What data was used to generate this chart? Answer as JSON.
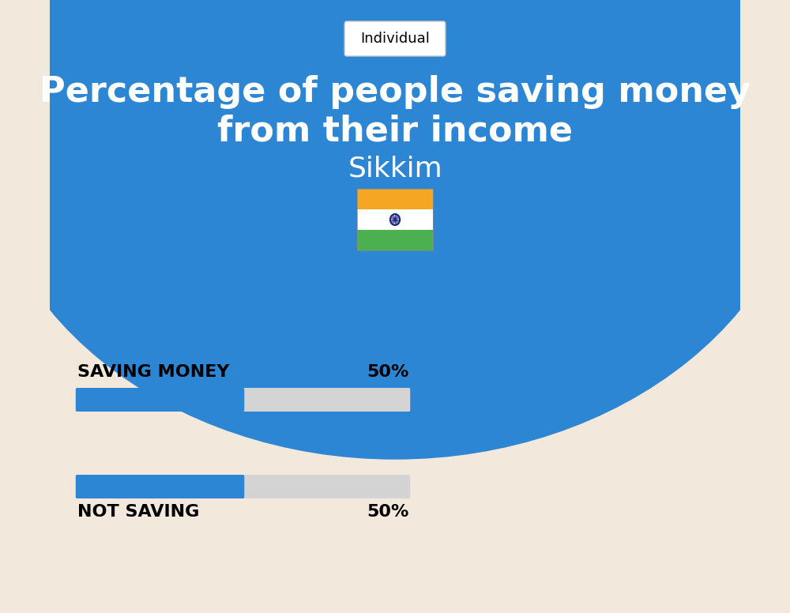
{
  "title_line1": "Percentage of people saving money",
  "title_line2": "from their income",
  "subtitle": "Sikkim",
  "tab_label": "Individual",
  "bg_color": "#f2e8dc",
  "header_color": "#2d86d4",
  "bar_blue": "#2d86d4",
  "bar_gray": "#d4d4d4",
  "categories": [
    "SAVING MONEY",
    "NOT SAVING"
  ],
  "values": [
    50,
    50
  ],
  "value_labels": [
    "50%",
    "50%"
  ],
  "text_color": "#000000",
  "title_color": "#ffffff",
  "subtitle_color": "#ffffff",
  "flag_orange": "#f5a623",
  "flag_white": "#ffffff",
  "flag_green": "#4caf50",
  "flag_navy": "#1a237e"
}
